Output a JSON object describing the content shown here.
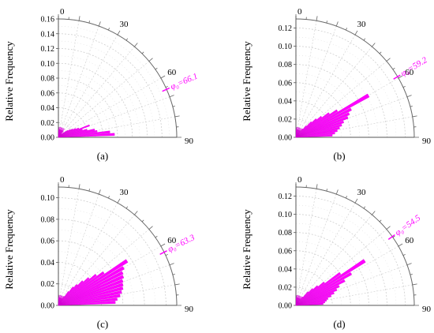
{
  "figure": {
    "accent_color": "#ff00ff",
    "ylabel": "Relative Frequency",
    "angle_labels": [
      "0",
      "30",
      "60",
      "90"
    ]
  },
  "chart_data": [
    {
      "type": "polar-bar",
      "panel_label": "(a)",
      "ylabel": "Relative Frequency",
      "rlim": [
        0,
        0.16
      ],
      "rticks": [
        "0.00",
        "0.02",
        "0.04",
        "0.06",
        "0.08",
        "0.10",
        "0.12",
        "0.14",
        "0.16"
      ],
      "theta_range": [
        0,
        90
      ],
      "theta_ticks": [
        "0",
        "30",
        "60",
        "90"
      ],
      "annotation": "φ₀=66.1",
      "annotation_angle": 66.1,
      "bin_width_deg": 3,
      "angles": [
        39,
        42,
        45,
        48,
        51,
        54,
        57,
        60,
        63,
        66,
        69,
        72,
        75,
        78,
        81,
        84,
        87
      ],
      "values": [
        0.005,
        0.006,
        0.008,
        0.01,
        0.013,
        0.016,
        0.019,
        0.022,
        0.026,
        0.03,
        0.045,
        0.034,
        0.04,
        0.05,
        0.053,
        0.07,
        0.076
      ]
    },
    {
      "type": "polar-bar",
      "panel_label": "(b)",
      "ylabel": "Relative Frequency",
      "rlim": [
        0,
        0.13
      ],
      "rticks": [
        "0.00",
        "0.02",
        "0.04",
        "0.06",
        "0.08",
        "0.10",
        "0.12"
      ],
      "theta_range": [
        0,
        90
      ],
      "theta_ticks": [
        "0",
        "30",
        "60",
        "90"
      ],
      "annotation": "φ₀=59.2",
      "annotation_angle": 59.2,
      "bin_width_deg": 3,
      "angles": [
        36,
        39,
        42,
        45,
        48,
        51,
        54,
        57,
        60,
        63,
        66,
        69,
        72,
        75,
        78,
        81,
        84,
        87
      ],
      "values": [
        0.008,
        0.012,
        0.017,
        0.024,
        0.03,
        0.036,
        0.045,
        0.054,
        0.092,
        0.068,
        0.064,
        0.061,
        0.055,
        0.052,
        0.049,
        0.046,
        0.043,
        0.04
      ]
    },
    {
      "type": "polar-bar",
      "panel_label": "(c)",
      "ylabel": "Relative Frequency",
      "rlim": [
        0,
        0.11
      ],
      "rticks": [
        "0.00",
        "0.02",
        "0.04",
        "0.06",
        "0.08",
        "0.10"
      ],
      "theta_range": [
        0,
        90
      ],
      "theta_ticks": [
        "0",
        "30",
        "60",
        "90"
      ],
      "annotation": "φ₀=63.3",
      "annotation_angle": 63.3,
      "bin_width_deg": 3,
      "angles": [
        33,
        36,
        39,
        42,
        45,
        48,
        51,
        54,
        57,
        60,
        63,
        66,
        69,
        72,
        75,
        78,
        81,
        84,
        87
      ],
      "values": [
        0.01,
        0.016,
        0.022,
        0.026,
        0.032,
        0.038,
        0.045,
        0.052,
        0.076,
        0.07,
        0.067,
        0.066,
        0.064,
        0.063,
        0.062,
        0.06,
        0.058,
        0.055,
        0.053
      ]
    },
    {
      "type": "polar-bar",
      "panel_label": "(d)",
      "ylabel": "Relative Frequency",
      "rlim": [
        0,
        0.13
      ],
      "rticks": [
        "0.00",
        "0.02",
        "0.04",
        "0.06",
        "0.08",
        "0.10",
        "0.12"
      ],
      "theta_range": [
        0,
        90
      ],
      "theta_ticks": [
        "0",
        "30",
        "60",
        "90"
      ],
      "annotation": "φ₀=54.5",
      "annotation_angle": 54.5,
      "bin_width_deg": 3,
      "angles": [
        36,
        39,
        42,
        45,
        48,
        51,
        54,
        57,
        60,
        63,
        66,
        69,
        72,
        75,
        78,
        81,
        84,
        87
      ],
      "values": [
        0.008,
        0.012,
        0.02,
        0.026,
        0.032,
        0.04,
        0.06,
        0.09,
        0.07,
        0.06,
        0.052,
        0.048,
        0.044,
        0.04,
        0.036,
        0.034,
        0.032,
        0.03
      ]
    }
  ]
}
